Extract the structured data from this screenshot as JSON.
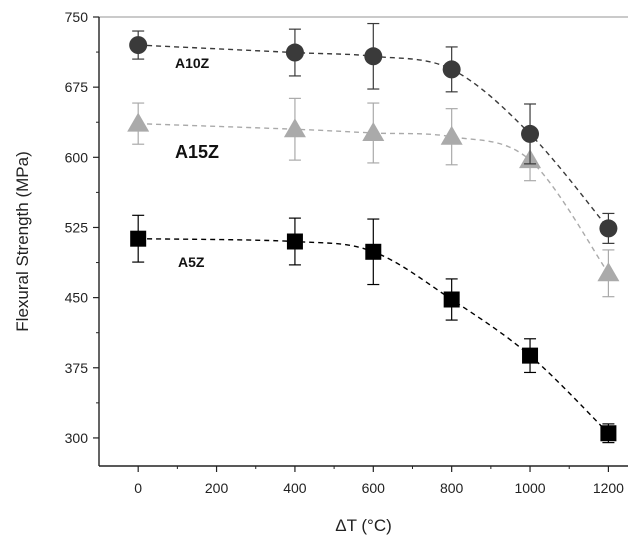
{
  "chart_data": {
    "type": "scatter",
    "title": "",
    "xlabel": "ΔT (°C)",
    "ylabel": "Flexural Strength (MPa)",
    "xlim": [
      -100,
      1250
    ],
    "ylim": [
      270,
      750
    ],
    "x_ticks": [
      0,
      200,
      400,
      600,
      800,
      1000,
      1200
    ],
    "y_ticks": [
      300,
      375,
      450,
      525,
      600,
      675,
      750
    ],
    "grid": false,
    "legend": "none",
    "fit_lines": "dashed",
    "series": [
      {
        "name": "A10Z",
        "color": "#3a3a3a",
        "marker": "circle",
        "x": [
          0,
          400,
          600,
          800,
          1000,
          1200
        ],
        "y": [
          720,
          712,
          708,
          694,
          625,
          524
        ],
        "err": [
          15,
          25,
          35,
          24,
          32,
          16
        ]
      },
      {
        "name": "A15Z",
        "color": "#aaaaaa",
        "marker": "triangle",
        "x": [
          0,
          400,
          600,
          800,
          1000,
          1200
        ],
        "y": [
          636,
          630,
          626,
          622,
          597,
          476
        ],
        "err": [
          22,
          33,
          32,
          30,
          22,
          25
        ]
      },
      {
        "name": "A5Z",
        "color": "#000000",
        "marker": "square",
        "x": [
          0,
          400,
          600,
          800,
          1000,
          1200
        ],
        "y": [
          513,
          510,
          499,
          448,
          388,
          305
        ],
        "err": [
          25,
          25,
          35,
          22,
          18,
          10
        ]
      }
    ]
  }
}
